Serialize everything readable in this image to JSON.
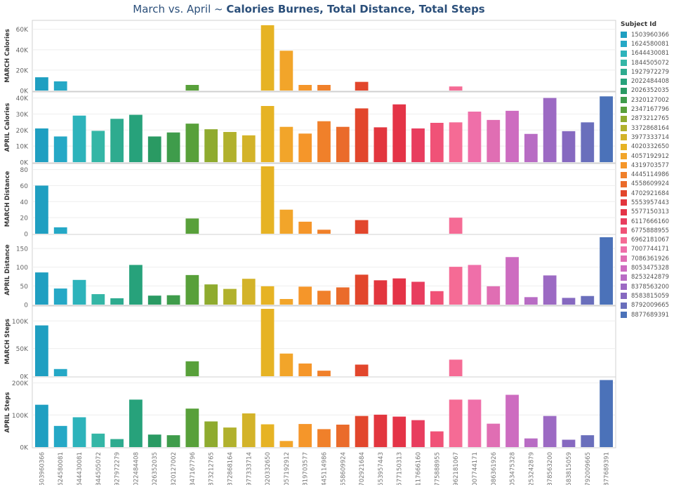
{
  "title": {
    "prefix": "March vs. April ~ ",
    "bold": "Calories Burnes, Total Distance, Total Steps"
  },
  "legend": {
    "title": "Subject Id"
  },
  "chart_data": {
    "type": "bar",
    "categories": [
      "1503960366",
      "1624580081",
      "1644430081",
      "1844505072",
      "1927972279",
      "2022484408",
      "2026352035",
      "2320127002",
      "2347167796",
      "2873212765",
      "3372868164",
      "3977333714",
      "4020332650",
      "4057192912",
      "4319703577",
      "4445114986",
      "4558609924",
      "4702921684",
      "5553957443",
      "5577150313",
      "6117666160",
      "6775888955",
      "6962181067",
      "7007744171",
      "7086361926",
      "8053475328",
      "8253242879",
      "8378563200",
      "8583815059",
      "8792009665",
      "8877689391"
    ],
    "colors": [
      "#1f9fc1",
      "#25a8c6",
      "#2db3bb",
      "#34b6a6",
      "#2eab8f",
      "#27a27b",
      "#2a9a63",
      "#3f9c4b",
      "#58a03a",
      "#8fab2f",
      "#b1b12d",
      "#d3b329",
      "#e6b324",
      "#f2a52a",
      "#f5962a",
      "#f0802a",
      "#ea6b2b",
      "#e2462c",
      "#e2363e",
      "#e43447",
      "#e83d5e",
      "#f05277",
      "#f56b95",
      "#ef6fa9",
      "#e06eb3",
      "#cd6cc0",
      "#b86cc4",
      "#9c6ac3",
      "#8669c0",
      "#6a6fbc",
      "#4b72b9"
    ],
    "panels": [
      {
        "ylabel": "MARCH Calories",
        "ylim": [
          0,
          66000
        ],
        "ticks": [
          0,
          20000,
          40000,
          60000
        ],
        "tick_labels": [
          "0K",
          "20K",
          "40K",
          "60K"
        ],
        "values": [
          13000,
          9000,
          null,
          null,
          null,
          null,
          null,
          null,
          5500,
          null,
          null,
          null,
          64000,
          39000,
          5500,
          5500,
          null,
          8500,
          null,
          null,
          null,
          null,
          4000,
          null,
          null,
          null,
          null,
          null,
          null,
          null,
          null
        ]
      },
      {
        "ylabel": "APRIL Calories",
        "ylim": [
          0,
          42000
        ],
        "ticks": [
          0,
          10000,
          20000,
          30000,
          40000
        ],
        "tick_labels": [
          "0K",
          "10K",
          "20K",
          "30K",
          "40K"
        ],
        "values": [
          21000,
          16000,
          29000,
          19500,
          27000,
          29500,
          16000,
          18500,
          24000,
          20500,
          18800,
          16700,
          35000,
          22000,
          17800,
          25500,
          22000,
          33500,
          21700,
          36000,
          21000,
          24500,
          24800,
          31500,
          26300,
          32000,
          17600,
          40000,
          19300,
          24800,
          41000
        ]
      },
      {
        "ylabel": "MARCH Distance",
        "ylim": [
          0,
          84
        ],
        "ticks": [
          0,
          20,
          40,
          60,
          80
        ],
        "tick_labels": [
          "0",
          "20",
          "40",
          "60",
          "80"
        ],
        "values": [
          60,
          8,
          null,
          null,
          null,
          null,
          null,
          null,
          19,
          null,
          null,
          null,
          84,
          30,
          15,
          5,
          null,
          17,
          null,
          null,
          null,
          null,
          20,
          null,
          null,
          null,
          null,
          null,
          null,
          null,
          null
        ]
      },
      {
        "ylabel": "APRIL Distance",
        "ylim": [
          0,
          180
        ],
        "ticks": [
          0,
          50,
          100,
          150
        ],
        "tick_labels": [
          "0",
          "50",
          "100",
          "150"
        ],
        "values": [
          86,
          43,
          66,
          28,
          17,
          106,
          24,
          25,
          79,
          54,
          42,
          69,
          49,
          15,
          48,
          37,
          46,
          80,
          65,
          70,
          61,
          36,
          101,
          106,
          49,
          127,
          20,
          78,
          18,
          23,
          180
        ]
      },
      {
        "ylabel": "MARCH Steps",
        "ylim": [
          0,
          122000
        ],
        "ticks": [
          0,
          50000,
          100000
        ],
        "tick_labels": [
          "0K",
          "50K",
          "100K"
        ],
        "values": [
          92000,
          13000,
          null,
          null,
          null,
          null,
          null,
          null,
          27000,
          null,
          null,
          null,
          122000,
          41000,
          23000,
          10000,
          null,
          21000,
          null,
          null,
          null,
          null,
          30000,
          null,
          null,
          null,
          null,
          null,
          null,
          null,
          null
        ]
      },
      {
        "ylabel": "APRIL Steps",
        "ylim": [
          0,
          210000
        ],
        "ticks": [
          0,
          100000,
          200000
        ],
        "tick_labels": [
          "0K",
          "100K",
          "200K"
        ],
        "values": [
          132000,
          66000,
          93000,
          42000,
          25000,
          148000,
          39000,
          37000,
          120000,
          80000,
          61000,
          105000,
          71000,
          19000,
          72000,
          56000,
          70000,
          97000,
          101000,
          95000,
          84000,
          49000,
          148000,
          148000,
          73000,
          163000,
          27000,
          97000,
          23000,
          37000,
          209000
        ]
      }
    ]
  }
}
